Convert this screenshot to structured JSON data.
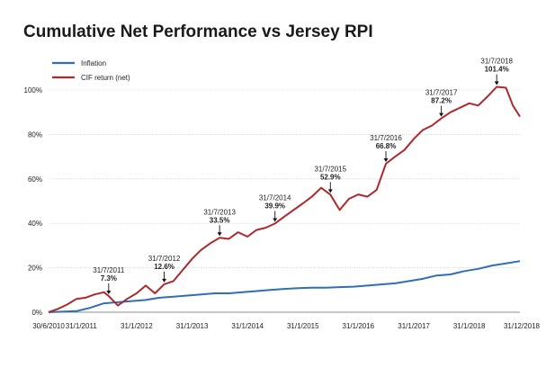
{
  "chart_data": {
    "type": "line",
    "title": "Cumulative Net Performance vs Jersey RPI",
    "xlabel": "",
    "ylabel": "",
    "ylim": [
      0,
      100
    ],
    "yticks": [
      0,
      20,
      40,
      60,
      80,
      100
    ],
    "ytick_labels": [
      "0%",
      "20%",
      "40%",
      "60%",
      "80%",
      "100%"
    ],
    "xlim": [
      "2010-06-30",
      "2018-12-31"
    ],
    "xticks": [
      "2010-06-30",
      "2011-01-31",
      "2012-01-31",
      "2013-01-31",
      "2014-01-31",
      "2015-01-31",
      "2016-01-31",
      "2017-01-31",
      "2018-01-31",
      "2018-12-31"
    ],
    "xtick_labels": [
      "30/6/2010",
      "31/1/2011",
      "31/1/2012",
      "31/1/2013",
      "31/1/2014",
      "31/1/2015",
      "31/1/2016",
      "31/1/2017",
      "31/1/2018",
      "31/12/2018"
    ],
    "grid": true,
    "legend_position": "top-left",
    "series": [
      {
        "name": "Inflation",
        "color": "#2f6fb5",
        "points": [
          [
            "2010-06-30",
            0
          ],
          [
            "2010-12-31",
            0.5
          ],
          [
            "2011-03-31",
            2
          ],
          [
            "2011-06-30",
            4
          ],
          [
            "2011-09-30",
            4.5
          ],
          [
            "2011-12-31",
            5
          ],
          [
            "2012-03-31",
            5.5
          ],
          [
            "2012-06-30",
            6.5
          ],
          [
            "2012-09-30",
            7
          ],
          [
            "2012-12-31",
            7.5
          ],
          [
            "2013-03-31",
            8
          ],
          [
            "2013-06-30",
            8.5
          ],
          [
            "2013-09-30",
            8.5
          ],
          [
            "2013-12-31",
            9
          ],
          [
            "2014-03-31",
            9.5
          ],
          [
            "2014-06-30",
            10
          ],
          [
            "2014-09-30",
            10.5
          ],
          [
            "2014-12-31",
            10.8
          ],
          [
            "2015-03-31",
            11
          ],
          [
            "2015-06-30",
            11
          ],
          [
            "2015-09-30",
            11.3
          ],
          [
            "2015-12-31",
            11.5
          ],
          [
            "2016-03-31",
            12
          ],
          [
            "2016-06-30",
            12.5
          ],
          [
            "2016-09-30",
            13
          ],
          [
            "2016-12-31",
            14
          ],
          [
            "2017-03-31",
            15
          ],
          [
            "2017-06-30",
            16.5
          ],
          [
            "2017-09-30",
            17
          ],
          [
            "2017-12-31",
            18.5
          ],
          [
            "2018-03-31",
            19.5
          ],
          [
            "2018-06-30",
            21
          ],
          [
            "2018-09-30",
            22
          ],
          [
            "2018-12-31",
            23
          ]
        ]
      },
      {
        "name": "CIF return (net)",
        "color": "#b0282c",
        "points": [
          [
            "2010-06-30",
            0
          ],
          [
            "2010-08-31",
            1.5
          ],
          [
            "2010-10-31",
            3.5
          ],
          [
            "2010-12-31",
            6
          ],
          [
            "2011-02-28",
            6.5
          ],
          [
            "2011-04-30",
            8
          ],
          [
            "2011-06-30",
            9
          ],
          [
            "2011-07-31",
            7.3
          ],
          [
            "2011-09-30",
            3
          ],
          [
            "2011-11-30",
            6
          ],
          [
            "2012-01-31",
            8.5
          ],
          [
            "2012-03-31",
            12
          ],
          [
            "2012-05-31",
            8.5
          ],
          [
            "2012-07-31",
            12.6
          ],
          [
            "2012-09-30",
            14
          ],
          [
            "2012-11-30",
            19
          ],
          [
            "2013-01-31",
            24
          ],
          [
            "2013-03-31",
            28
          ],
          [
            "2013-05-31",
            31
          ],
          [
            "2013-07-31",
            33.5
          ],
          [
            "2013-09-30",
            33
          ],
          [
            "2013-11-30",
            36
          ],
          [
            "2014-01-31",
            34
          ],
          [
            "2014-03-31",
            37
          ],
          [
            "2014-05-31",
            38
          ],
          [
            "2014-07-31",
            39.9
          ],
          [
            "2014-09-30",
            43
          ],
          [
            "2014-11-30",
            46
          ],
          [
            "2015-01-31",
            49
          ],
          [
            "2015-03-31",
            52
          ],
          [
            "2015-05-31",
            56
          ],
          [
            "2015-07-31",
            52.9
          ],
          [
            "2015-09-30",
            46
          ],
          [
            "2015-11-30",
            51
          ],
          [
            "2016-01-31",
            53
          ],
          [
            "2016-03-31",
            52
          ],
          [
            "2016-05-31",
            55
          ],
          [
            "2016-07-31",
            66.8
          ],
          [
            "2016-09-30",
            70
          ],
          [
            "2016-11-30",
            73
          ],
          [
            "2017-01-31",
            78
          ],
          [
            "2017-03-31",
            82
          ],
          [
            "2017-05-31",
            84
          ],
          [
            "2017-07-31",
            87.2
          ],
          [
            "2017-09-30",
            90
          ],
          [
            "2017-11-30",
            92
          ],
          [
            "2018-01-31",
            94
          ],
          [
            "2018-03-31",
            93
          ],
          [
            "2018-05-31",
            97
          ],
          [
            "2018-07-31",
            101.4
          ],
          [
            "2018-09-30",
            101
          ],
          [
            "2018-11-15",
            93
          ],
          [
            "2018-12-31",
            88
          ]
        ]
      }
    ],
    "annotations": [
      {
        "date": "2011-07-31",
        "label": "31/7/2011",
        "value_label": "7.3%",
        "value": 7.3
      },
      {
        "date": "2012-07-31",
        "label": "31/7/2012",
        "value_label": "12.6%",
        "value": 12.6
      },
      {
        "date": "2013-07-31",
        "label": "31/7/2013",
        "value_label": "33.5%",
        "value": 33.5
      },
      {
        "date": "2014-07-31",
        "label": "31/7/2014",
        "value_label": "39.9%",
        "value": 39.9
      },
      {
        "date": "2015-07-31",
        "label": "31/7/2015",
        "value_label": "52.9%",
        "value": 52.9
      },
      {
        "date": "2016-07-31",
        "label": "31/7/2016",
        "value_label": "66.8%",
        "value": 66.8
      },
      {
        "date": "2017-07-31",
        "label": "31/7/2017",
        "value_label": "87.2%",
        "value": 87.2
      },
      {
        "date": "2018-07-31",
        "label": "31/7/2018",
        "value_label": "101.4%",
        "value": 101.4
      }
    ]
  }
}
